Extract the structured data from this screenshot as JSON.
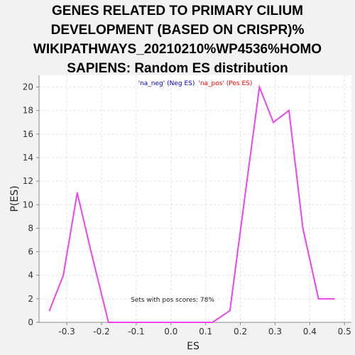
{
  "chart_data": {
    "type": "line",
    "title_lines": [
      "GENES RELATED TO PRIMARY CILIUM",
      "DEVELOPMENT (BASED ON CRISPR)%",
      "WIKIPATHWAYS_20210210%WP4536%HOMO",
      "SAPIENS: Random ES distribution"
    ],
    "xlabel": "ES",
    "ylabel": "P(ES)",
    "xlim": [
      -0.38,
      0.52
    ],
    "ylim": [
      0,
      21
    ],
    "x_ticks": [
      -0.3,
      -0.2,
      -0.1,
      0.0,
      0.1,
      0.2,
      0.3,
      0.4,
      0.5
    ],
    "x_tick_labels": [
      "-0.3",
      "-0.2",
      "-0.1",
      "0.0",
      "0.1",
      "0.2",
      "0.3",
      "0.4",
      "0.5"
    ],
    "y_ticks": [
      0,
      2,
      4,
      6,
      8,
      10,
      12,
      14,
      16,
      18,
      20
    ],
    "y_tick_labels": [
      "0",
      "2",
      "4",
      "6",
      "8",
      "10",
      "12",
      "14",
      "16",
      "18",
      "20"
    ],
    "grid": true,
    "legend": {
      "placement": "top-center",
      "entries": [
        {
          "label": "'na_neg' (Neg ES)",
          "color": "#0000cc"
        },
        {
          "label": "'na_pos' (Pos ES)",
          "color": "#ff0000"
        }
      ]
    },
    "annotation": "Sets with pos scores: 78%",
    "series": [
      {
        "color": "#ee44ee",
        "x": [
          -0.35,
          -0.31,
          -0.27,
          -0.23,
          -0.18,
          -0.14,
          0.12,
          0.17,
          0.21,
          0.255,
          0.295,
          0.34,
          0.38,
          0.425,
          0.47
        ],
        "y": [
          1,
          4,
          11,
          6,
          0,
          0,
          0,
          1,
          10,
          20,
          17,
          18,
          8,
          2,
          2
        ]
      }
    ]
  }
}
